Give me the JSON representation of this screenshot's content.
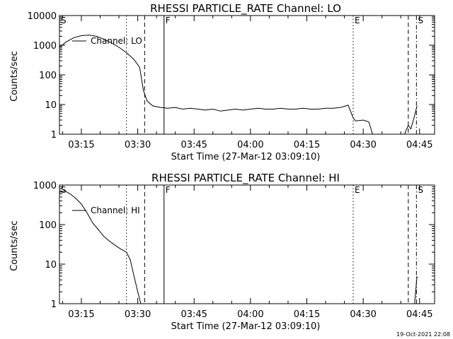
{
  "chart_data": [
    {
      "type": "line",
      "title": "RHESSI PARTICLE_RATE Channel: LO",
      "xlabel": "Start Time (27-Mar-12 03:09:10)",
      "ylabel": "Counts/sec",
      "y_scale": "log",
      "ylim": [
        1,
        10000
      ],
      "xlim": [
        "03:09:10",
        "04:49:00"
      ],
      "x_ticks": [
        "03:15",
        "03:30",
        "03:45",
        "04:00",
        "04:15",
        "04:30",
        "04:45"
      ],
      "y_ticks": [
        "1",
        "10",
        "100",
        "1000",
        "10000"
      ],
      "legend": "Channel: LO",
      "legend_position": "top-left",
      "grid": false,
      "markers": [
        {
          "label": "S",
          "time": "03:09:10",
          "style": "none"
        },
        {
          "label": "",
          "time": "03:27:00",
          "style": "dotted"
        },
        {
          "label": "",
          "time": "03:31:50",
          "style": "dashed"
        },
        {
          "label": "F",
          "time": "03:37:00",
          "style": "solid"
        },
        {
          "label": "E",
          "time": "04:27:20",
          "style": "dotted"
        },
        {
          "label": "",
          "time": "04:42:00",
          "style": "dashed"
        },
        {
          "label": "S",
          "time": "04:44:10",
          "style": "dashdot"
        }
      ],
      "x": [
        "03:09:10",
        "03:11:00",
        "03:13:00",
        "03:15:00",
        "03:17:00",
        "03:19:00",
        "03:21:00",
        "03:23:00",
        "03:25:00",
        "03:27:00",
        "03:29:00",
        "03:30:30",
        "03:31:30",
        "03:32:30",
        "03:34:00",
        "03:36:00",
        "03:38:00",
        "03:40:00",
        "03:42:00",
        "03:44:00",
        "03:46:00",
        "03:48:00",
        "03:50:00",
        "03:52:00",
        "03:54:00",
        "03:56:00",
        "03:58:00",
        "04:00:00",
        "04:02:00",
        "04:04:00",
        "04:06:00",
        "04:08:00",
        "04:10:00",
        "04:12:00",
        "04:14:00",
        "04:16:00",
        "04:18:00",
        "04:20:00",
        "04:22:00",
        "04:24:00",
        "04:26:00",
        "04:27:20",
        "04:28:00",
        "04:30:00",
        "04:31:30",
        "04:32:30"
      ],
      "values": [
        850,
        1300,
        1800,
        2100,
        2200,
        2000,
        1600,
        1200,
        850,
        560,
        330,
        180,
        30,
        13,
        9,
        8,
        7.5,
        8,
        7,
        7.5,
        7,
        6.5,
        7,
        6,
        6.5,
        7,
        6.5,
        7,
        7.5,
        7,
        7,
        7.5,
        7,
        7,
        7.5,
        7,
        7,
        7.5,
        7.5,
        8,
        9.5,
        3.5,
        2.8,
        3,
        2.6,
        1
      ],
      "tail_x": [
        "04:41:00",
        "04:42:00",
        "04:42:40",
        "04:43:30",
        "04:44:20"
      ],
      "tail_values": [
        1,
        2,
        1.5,
        3.5,
        9
      ]
    },
    {
      "type": "line",
      "title": "RHESSI PARTICLE_RATE Channel: HI",
      "xlabel": "Start Time (27-Mar-12 03:09:10)",
      "ylabel": "Counts/sec",
      "y_scale": "log",
      "ylim": [
        1,
        1000
      ],
      "xlim": [
        "03:09:10",
        "04:49:00"
      ],
      "x_ticks": [
        "03:15",
        "03:30",
        "03:45",
        "04:00",
        "04:15",
        "04:30",
        "04:45"
      ],
      "y_ticks": [
        "1",
        "10",
        "100",
        "1000"
      ],
      "legend": "Channel: HI",
      "legend_position": "top-left",
      "grid": false,
      "markers": [
        {
          "label": "S",
          "time": "03:09:10",
          "style": "none"
        },
        {
          "label": "",
          "time": "03:27:00",
          "style": "dotted"
        },
        {
          "label": "",
          "time": "03:31:50",
          "style": "dashed"
        },
        {
          "label": "F",
          "time": "03:37:00",
          "style": "solid"
        },
        {
          "label": "E",
          "time": "04:27:20",
          "style": "dotted"
        },
        {
          "label": "",
          "time": "04:42:00",
          "style": "dashed"
        },
        {
          "label": "S",
          "time": "04:44:10",
          "style": "dashdot"
        }
      ],
      "x": [
        "03:09:10",
        "03:10:30",
        "03:12:00",
        "03:13:30",
        "03:15:00",
        "03:16:30",
        "03:18:00",
        "03:19:30",
        "03:21:00",
        "03:22:30",
        "03:24:00",
        "03:25:30",
        "03:27:00",
        "03:28:00",
        "03:29:00",
        "03:30:00",
        "03:30:50"
      ],
      "values": [
        650,
        720,
        600,
        460,
        330,
        200,
        110,
        75,
        50,
        38,
        30,
        24,
        20,
        13,
        5,
        2,
        1
      ],
      "tail_x": [
        "04:43:40",
        "04:44:20"
      ],
      "tail_values": [
        1,
        5
      ]
    }
  ],
  "footer": {
    "timestamp": "19-Oct-2021 22:08"
  }
}
